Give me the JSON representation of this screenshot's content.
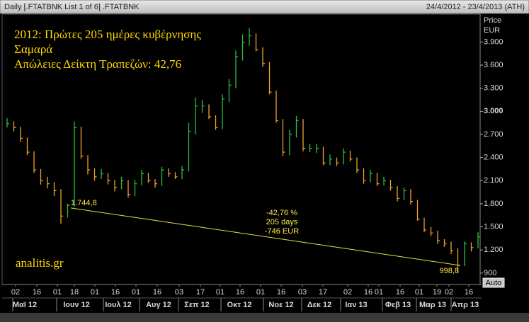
{
  "header": {
    "title": "Daily [.FTATBNK List 1 of 6] .FTATBNK",
    "range": "24/4/2012 - 23/4/2013 (ATH)"
  },
  "chart_data": {
    "type": "ohlc",
    "y_axis_title": "Price",
    "y_axis_unit": "EUR",
    "auto_button": "Auto",
    "up_color": "#2fbf3f",
    "down_color": "#f0a030",
    "ylim": [
      770,
      4280
    ],
    "yticks": [
      {
        "value": 3900,
        "label": "3.900"
      },
      {
        "value": 3600,
        "label": "3.600"
      },
      {
        "value": 3300,
        "label": "3.300"
      },
      {
        "value": 3000,
        "label": "3.000"
      },
      {
        "value": 2700,
        "label": "2.700"
      },
      {
        "value": 2400,
        "label": "2.400"
      },
      {
        "value": 2100,
        "label": "2.100"
      },
      {
        "value": 1800,
        "label": "1.800"
      },
      {
        "value": 1500,
        "label": "1.500"
      },
      {
        "value": 1200,
        "label": "1.200"
      },
      900
    ],
    "x_day_labels": [
      "02",
      "16",
      "01",
      "18",
      "01",
      "16",
      "01",
      "16",
      "03",
      "17",
      "01",
      "16",
      "01",
      "16",
      "03",
      "17",
      "02",
      "16",
      "01",
      "16",
      "01",
      "19",
      "02",
      "16"
    ],
    "x_month_labels": [
      "Μαϊ 12",
      "Ιουν 12",
      "Ιουλ 12",
      "Αυγ 12",
      "Σεπ 12",
      "Οκτ 12",
      "Νοε 12",
      "Δεκ 12",
      "Ιαν 13",
      "Φεβ 13",
      "Μαρ 13",
      "Απρ 13"
    ],
    "high": [
      2910,
      2870,
      2800,
      2660,
      2480,
      2250,
      2150,
      2080,
      1990,
      1800,
      2870,
      2800,
      2430,
      2260,
      2250,
      2200,
      2110,
      2150,
      2110,
      2110,
      2240,
      2200,
      2120,
      2280,
      2260,
      2210,
      2290,
      2850,
      3180,
      3150,
      3090,
      2950,
      3220,
      3420,
      3790,
      4000,
      4080,
      4010,
      3830,
      3640,
      3270,
      2900,
      2760,
      2940,
      2900,
      2580,
      2580,
      2540,
      2440,
      2400,
      2520,
      2490,
      2400,
      2260,
      2240,
      2200,
      2150,
      2110,
      2030,
      2010,
      1990,
      1850,
      1620,
      1500,
      1450,
      1340,
      1310,
      1220,
      1310,
      1300,
      1430
    ],
    "low": [
      2790,
      2740,
      2600,
      2430,
      2200,
      2050,
      2000,
      1900,
      1540,
      1620,
      1760,
      2380,
      2180,
      2100,
      2120,
      2050,
      1960,
      1990,
      1880,
      1900,
      2040,
      2070,
      2010,
      2030,
      2150,
      2120,
      2120,
      2220,
      2700,
      2980,
      2900,
      2760,
      2770,
      3120,
      3300,
      3660,
      3850,
      3780,
      3580,
      3220,
      2850,
      2420,
      2430,
      2660,
      2480,
      2470,
      2460,
      2300,
      2300,
      2290,
      2310,
      2350,
      2200,
      2060,
      2080,
      2030,
      2040,
      1970,
      1830,
      1850,
      1790,
      1580,
      1430,
      1380,
      1280,
      1240,
      1150,
      900,
      990,
      1180,
      1220
    ],
    "close": [
      2840,
      2790,
      2650,
      2470,
      2240,
      2100,
      2060,
      1970,
      1640,
      1780,
      2790,
      2420,
      2240,
      2150,
      2190,
      2100,
      2010,
      2100,
      1920,
      2060,
      2190,
      2100,
      2060,
      2240,
      2190,
      2150,
      2240,
      2740,
      3070,
      3070,
      2930,
      2790,
      3160,
      3340,
      3710,
      3890,
      3980,
      3800,
      3620,
      3250,
      2880,
      2470,
      2700,
      2880,
      2520,
      2520,
      2520,
      2330,
      2380,
      2330,
      2470,
      2380,
      2240,
      2100,
      2190,
      2060,
      2100,
      2010,
      1870,
      1970,
      1830,
      1600,
      1460,
      1420,
      1320,
      1280,
      1190,
      1000,
      1280,
      1230,
      1370
    ],
    "trendline": {
      "color": "#e8e040",
      "start": 1744.8,
      "start_label": "1.744,8",
      "end": 998.8,
      "end_label": "998,8"
    },
    "annotations": {
      "title_lines": [
        "2012: Πρώτες 205 ημέρες κυβέρνησης",
        "Σαμαρά",
        "Απώλειες Δείκτη Τραπεζών: 42,76"
      ],
      "change": [
        "-42,76 %",
        "205 days",
        "-746 EUR"
      ],
      "source": "analitis.gr"
    }
  }
}
